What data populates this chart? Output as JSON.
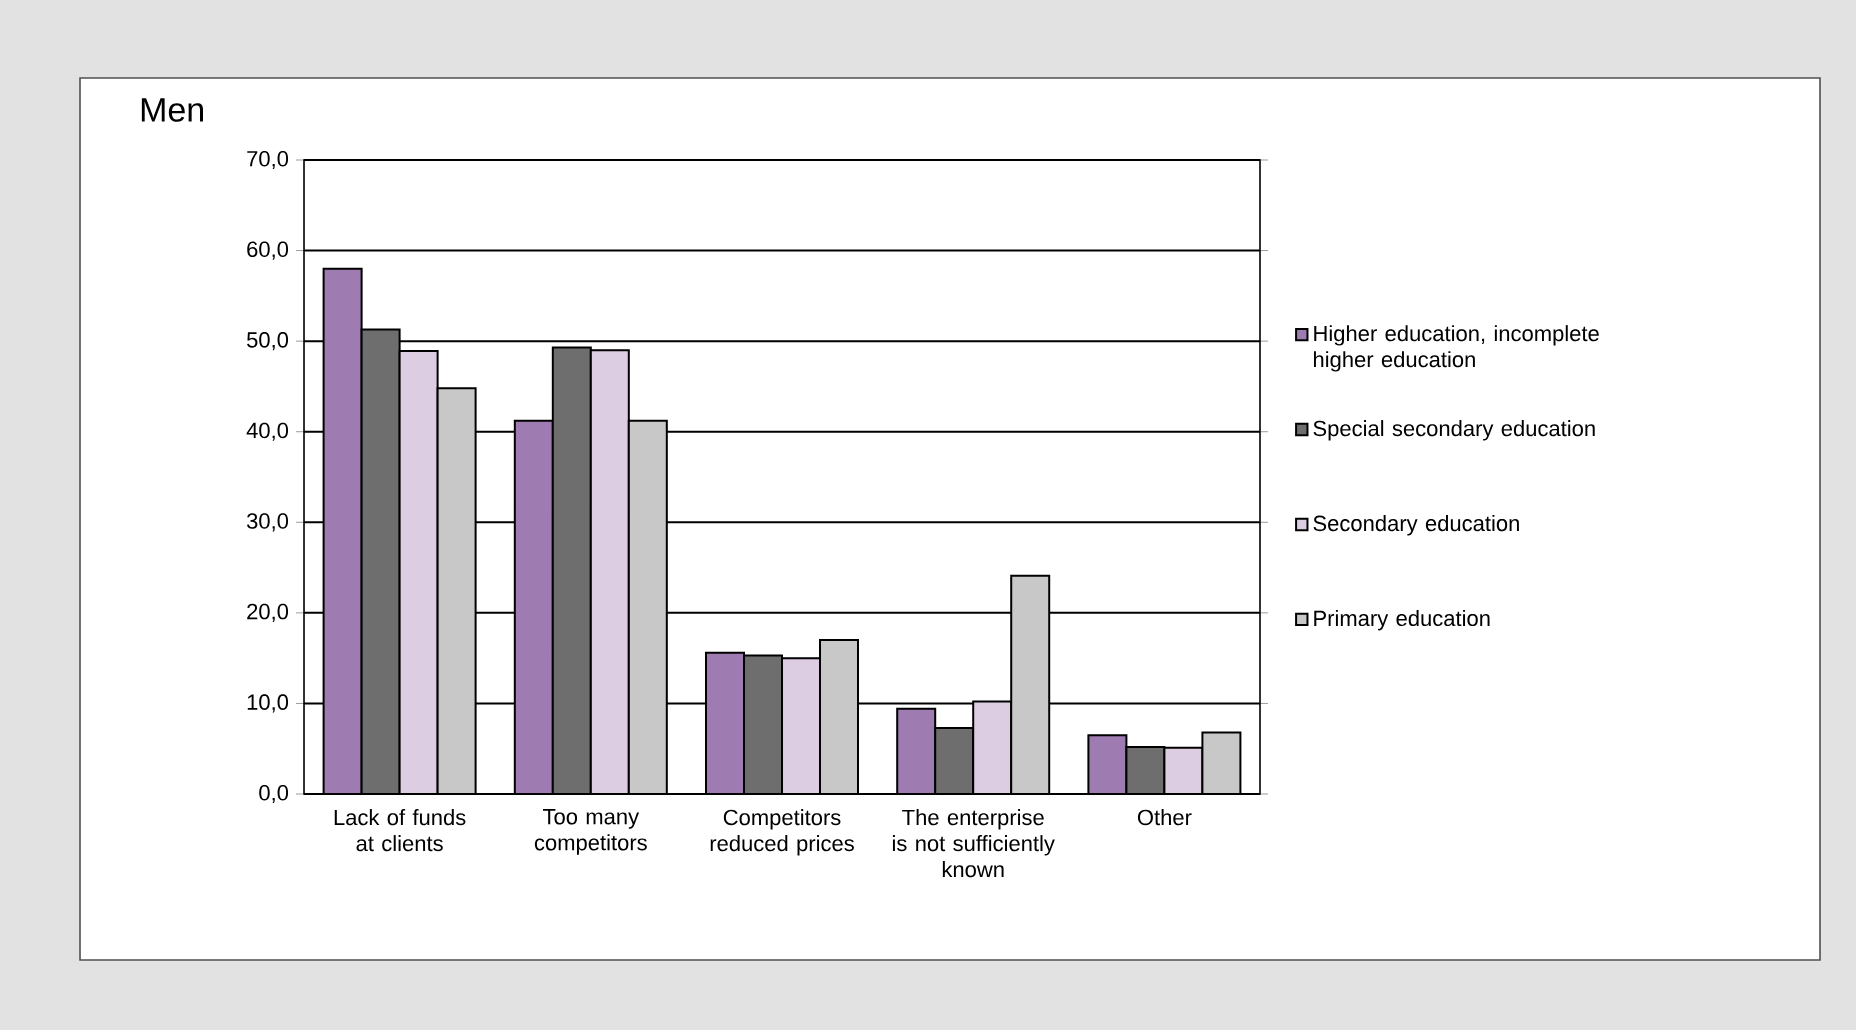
{
  "chart_data": {
    "type": "bar",
    "title": "Men",
    "categories": [
      "Lack of funds at clients",
      "Too many competitors",
      "Competitors reduced prices",
      "The enterprise is not sufficiently known",
      "Other"
    ],
    "series": [
      {
        "name": "Higher education, incomplete higher education",
        "color": "#9e7bb0",
        "values": [
          58.0,
          41.2,
          15.6,
          9.4,
          6.5
        ]
      },
      {
        "name": "Special secondary education",
        "color": "#6e6e6e",
        "values": [
          51.3,
          49.3,
          15.3,
          7.3,
          5.2
        ]
      },
      {
        "name": "Secondary education",
        "color": "#dccde3",
        "values": [
          48.9,
          49.0,
          15.0,
          10.2,
          5.1
        ]
      },
      {
        "name": "Primary education",
        "color": "#c8c8c8",
        "values": [
          44.8,
          41.2,
          17.0,
          24.1,
          6.8
        ]
      }
    ],
    "ylim": [
      0,
      70
    ],
    "yticks": [
      {
        "value": 0,
        "label": "0,0"
      },
      {
        "value": 10,
        "label": "10,0"
      },
      {
        "value": 20,
        "label": "20,0"
      },
      {
        "value": 30,
        "label": "30,0"
      },
      {
        "value": 40,
        "label": "40,0"
      },
      {
        "value": 50,
        "label": "50,0"
      },
      {
        "value": 60,
        "label": "60,0"
      },
      {
        "value": 70,
        "label": "70,0"
      }
    ],
    "grid": "y",
    "legend": "right"
  }
}
